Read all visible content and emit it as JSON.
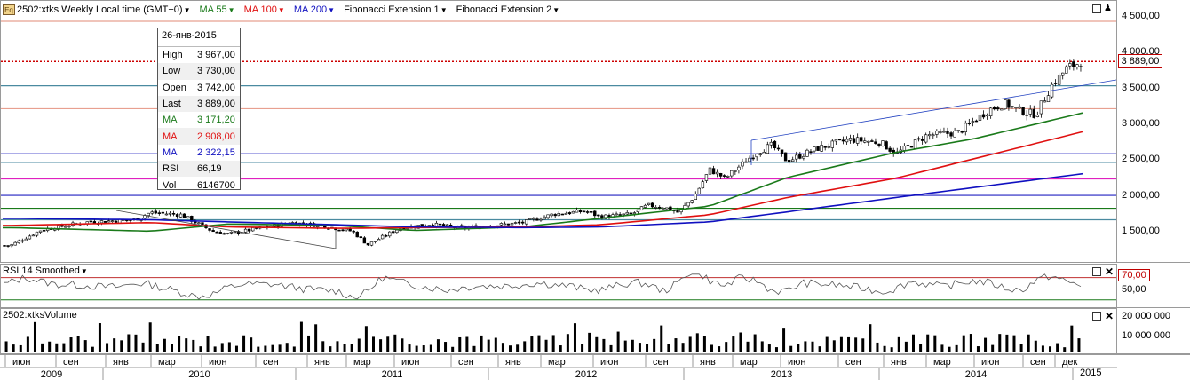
{
  "header": {
    "symbol_icon": "Eq",
    "title": "2502:xtks Weekly Local time (GMT+0)",
    "ma55_label": "MA 55",
    "ma100_label": "MA 100",
    "ma200_label": "MA 200",
    "fib1_label": "Fibonacci Extension 1",
    "fib2_label": "Fibonacci Extension 2"
  },
  "colors": {
    "ma55": "#1a7a1a",
    "ma100": "#e01010",
    "ma200": "#1010c0",
    "price_line": "#cc0000",
    "candles": "#000000"
  },
  "tooltip": {
    "date": "26-янв-2015",
    "rows": [
      {
        "k": "High",
        "v": "3 967,00"
      },
      {
        "k": "Low",
        "v": "3 730,00"
      },
      {
        "k": "Open",
        "v": "3 742,00"
      },
      {
        "k": "Last",
        "v": "3 889,00"
      },
      {
        "k": "MA",
        "v": "3 171,20"
      },
      {
        "k": "MA",
        "v": "2 908,00"
      },
      {
        "k": "MA",
        "v": "2 322,15"
      },
      {
        "k": "RSI",
        "v": "66,19"
      },
      {
        "k": "Vol",
        "v": "6146700"
      }
    ]
  },
  "last_price": "3 889,00",
  "rsi": {
    "title": "RSI 14 Smoothed",
    "level_label": "70,00",
    "tick_50": "50,00"
  },
  "volume": {
    "title": "2502:xtksVolume",
    "tick_20m": "20 000 000",
    "tick_10m": "10 000 000"
  },
  "chart_data": {
    "type": "candlestick",
    "timeframe": "Weekly",
    "y_ticks": [
      "4 500,00",
      "4 000,00",
      "3 500,00",
      "3 000,00",
      "2 500,00",
      "2 000,00",
      "1 500,00"
    ],
    "ylim": [
      1050,
      4700
    ],
    "x_month_labels": [
      "июн",
      "сен",
      "янв",
      "мар",
      "июн",
      "сен",
      "янв",
      "мар",
      "июн",
      "сен",
      "янв",
      "мар",
      "июн",
      "сен",
      "янв",
      "мар",
      "июн",
      "сен",
      "янв",
      "мар",
      "июн",
      "сен",
      "дек"
    ],
    "x_year_labels": [
      "2009",
      "2010",
      "2011",
      "2012",
      "2013",
      "2014",
      "2015"
    ],
    "close_series": [
      {
        "x": "2009-04",
        "y": 1320
      },
      {
        "x": "2009-06",
        "y": 1540
      },
      {
        "x": "2009-09",
        "y": 1650
      },
      {
        "x": "2009-12",
        "y": 1680
      },
      {
        "x": "2010-01",
        "y": 1780
      },
      {
        "x": "2010-03",
        "y": 1750
      },
      {
        "x": "2010-05",
        "y": 1520
      },
      {
        "x": "2010-06",
        "y": 1480
      },
      {
        "x": "2010-08",
        "y": 1560
      },
      {
        "x": "2010-10",
        "y": 1640
      },
      {
        "x": "2010-12",
        "y": 1600
      },
      {
        "x": "2011-02",
        "y": 1520
      },
      {
        "x": "2011-03",
        "y": 1330
      },
      {
        "x": "2011-05",
        "y": 1560
      },
      {
        "x": "2011-07",
        "y": 1620
      },
      {
        "x": "2011-09",
        "y": 1560
      },
      {
        "x": "2011-11",
        "y": 1600
      },
      {
        "x": "2012-01",
        "y": 1640
      },
      {
        "x": "2012-03",
        "y": 1760
      },
      {
        "x": "2012-05",
        "y": 1800
      },
      {
        "x": "2012-06",
        "y": 1720
      },
      {
        "x": "2012-08",
        "y": 1760
      },
      {
        "x": "2012-09",
        "y": 1880
      },
      {
        "x": "2012-10",
        "y": 1860
      },
      {
        "x": "2012-11",
        "y": 1780
      },
      {
        "x": "2012-12",
        "y": 2000
      },
      {
        "x": "2013-01",
        "y": 2380
      },
      {
        "x": "2013-02",
        "y": 2260
      },
      {
        "x": "2013-04",
        "y": 2620
      },
      {
        "x": "2013-05",
        "y": 2720
      },
      {
        "x": "2013-06",
        "y": 2500
      },
      {
        "x": "2013-08",
        "y": 2680
      },
      {
        "x": "2013-10",
        "y": 2800
      },
      {
        "x": "2013-12",
        "y": 2760
      },
      {
        "x": "2014-01",
        "y": 2600
      },
      {
        "x": "2014-03",
        "y": 2860
      },
      {
        "x": "2014-05",
        "y": 2900
      },
      {
        "x": "2014-07",
        "y": 3220
      },
      {
        "x": "2014-08",
        "y": 3300
      },
      {
        "x": "2014-09",
        "y": 3200
      },
      {
        "x": "2014-10",
        "y": 3150
      },
      {
        "x": "2014-11",
        "y": 3550
      },
      {
        "x": "2014-12",
        "y": 3800
      },
      {
        "x": "2015-01",
        "y": 3889
      }
    ],
    "ma55": [
      {
        "x": "2009-04",
        "y": 1570
      },
      {
        "x": "2010-01",
        "y": 1520
      },
      {
        "x": "2010-06",
        "y": 1620
      },
      {
        "x": "2011-01",
        "y": 1600
      },
      {
        "x": "2011-06",
        "y": 1530
      },
      {
        "x": "2012-01",
        "y": 1580
      },
      {
        "x": "2012-06",
        "y": 1700
      },
      {
        "x": "2013-01",
        "y": 1870
      },
      {
        "x": "2013-06",
        "y": 2270
      },
      {
        "x": "2014-01",
        "y": 2620
      },
      {
        "x": "2014-06",
        "y": 2810
      },
      {
        "x": "2015-01",
        "y": 3171
      }
    ],
    "ma100": [
      {
        "x": "2009-04",
        "y": 1600
      },
      {
        "x": "2010-01",
        "y": 1640
      },
      {
        "x": "2010-06",
        "y": 1580
      },
      {
        "x": "2011-01",
        "y": 1560
      },
      {
        "x": "2011-06",
        "y": 1570
      },
      {
        "x": "2012-01",
        "y": 1580
      },
      {
        "x": "2012-06",
        "y": 1610
      },
      {
        "x": "2013-01",
        "y": 1750
      },
      {
        "x": "2013-06",
        "y": 1990
      },
      {
        "x": "2014-01",
        "y": 2260
      },
      {
        "x": "2014-06",
        "y": 2530
      },
      {
        "x": "2015-01",
        "y": 2908
      }
    ],
    "ma200": [
      {
        "x": "2009-04",
        "y": 1700
      },
      {
        "x": "2010-01",
        "y": 1680
      },
      {
        "x": "2010-06",
        "y": 1650
      },
      {
        "x": "2011-01",
        "y": 1610
      },
      {
        "x": "2011-06",
        "y": 1580
      },
      {
        "x": "2012-01",
        "y": 1570
      },
      {
        "x": "2012-06",
        "y": 1580
      },
      {
        "x": "2013-01",
        "y": 1650
      },
      {
        "x": "2013-06",
        "y": 1790
      },
      {
        "x": "2014-01",
        "y": 1990
      },
      {
        "x": "2014-06",
        "y": 2130
      },
      {
        "x": "2015-01",
        "y": 2322
      }
    ],
    "horizontal_levels": [
      {
        "y": 4450,
        "color": "#e8a090"
      },
      {
        "y": 3889,
        "color": "#cc0000",
        "style": "dotted"
      },
      {
        "y": 3550,
        "color": "#4a8aa0"
      },
      {
        "y": 3230,
        "color": "#e8a090"
      },
      {
        "y": 2600,
        "color": "#2020c0"
      },
      {
        "y": 2480,
        "color": "#4a8aa0"
      },
      {
        "y": 2250,
        "color": "#e020c0"
      },
      {
        "y": 2020,
        "color": "#2020c0"
      },
      {
        "y": 1840,
        "color": "#1a7a1a"
      },
      {
        "y": 1680,
        "color": "#4a8aa0"
      }
    ]
  }
}
